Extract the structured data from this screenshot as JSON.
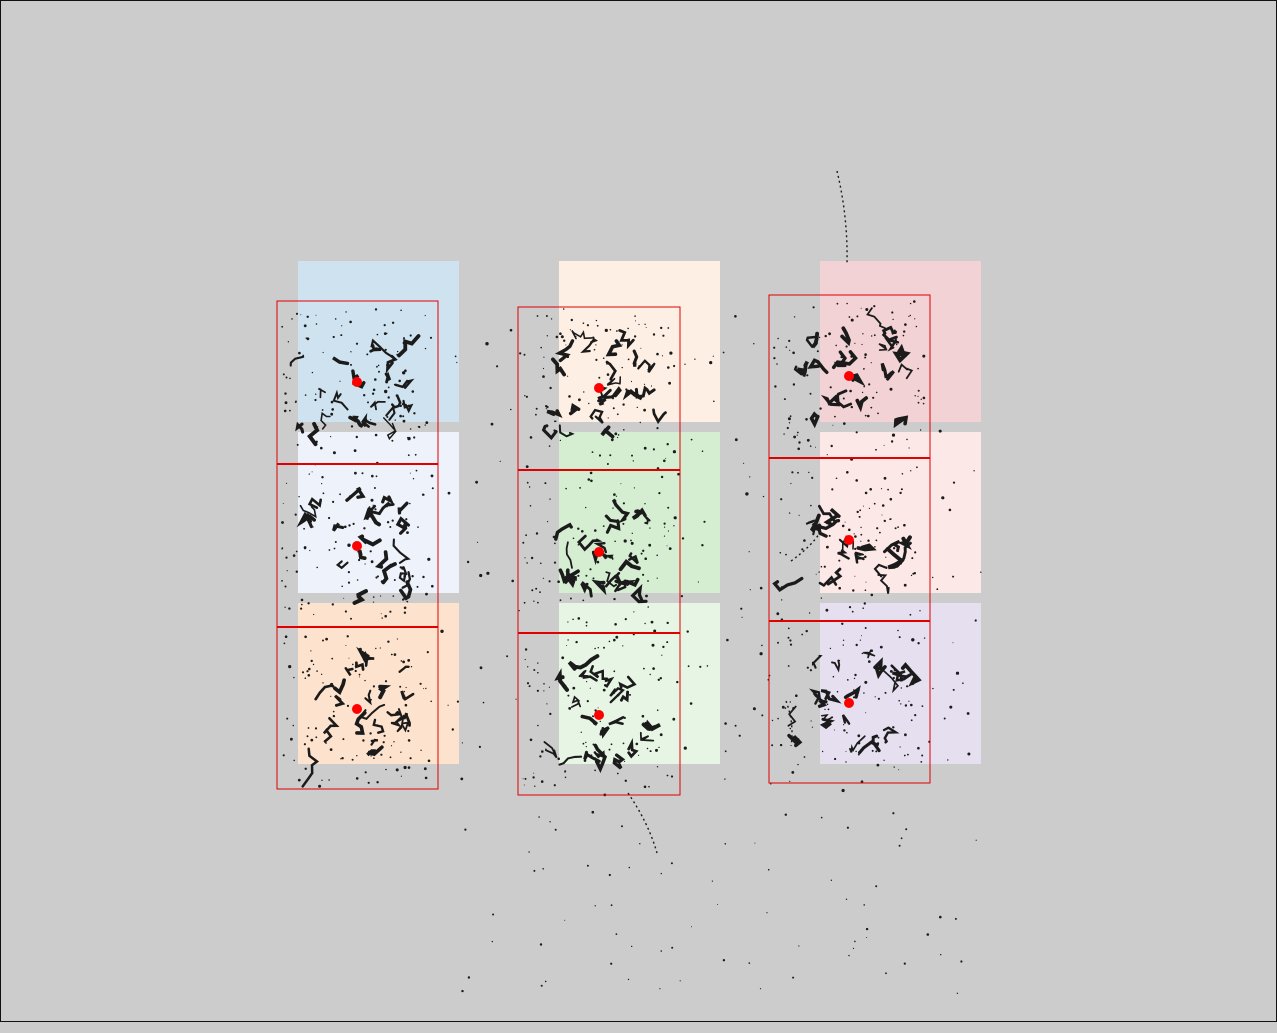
{
  "canvas": {
    "background": "#cccccc",
    "border_color": "#111111"
  },
  "grid": {
    "rows": 3,
    "columns": 3
  },
  "tiles": [
    {
      "id": "r1c1",
      "row": 1,
      "col": 1,
      "color": "#cfe2ef"
    },
    {
      "id": "r1c2",
      "row": 1,
      "col": 2,
      "color": "#fdefe3"
    },
    {
      "id": "r1c3",
      "row": 1,
      "col": 3,
      "color": "#f2d2d4"
    },
    {
      "id": "r2c1",
      "row": 2,
      "col": 1,
      "color": "#eef2fb"
    },
    {
      "id": "r2c2",
      "row": 2,
      "col": 2,
      "color": "#d5eed2"
    },
    {
      "id": "r2c3",
      "row": 2,
      "col": 3,
      "color": "#fde8e8"
    },
    {
      "id": "r3c1",
      "row": 3,
      "col": 1,
      "color": "#fde3cd"
    },
    {
      "id": "r3c2",
      "row": 3,
      "col": 2,
      "color": "#e7f5e4"
    },
    {
      "id": "r3c3",
      "row": 3,
      "col": 3,
      "color": "#e5dff0"
    }
  ],
  "overlay": {
    "outline_color": "#e00000",
    "marker_color": "#ff0000"
  },
  "speck_color": "#1b1b1b"
}
